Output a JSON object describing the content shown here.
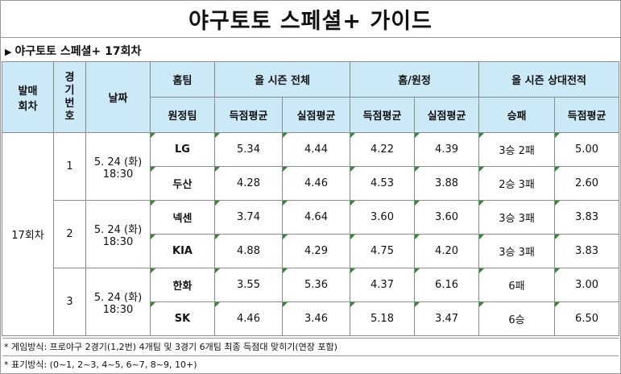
{
  "title": "야구토토 스페셜+ 가이드",
  "subtitle": "야구토토 스페셜+ 17회차",
  "header": {
    "round": "발매\n회차",
    "game_no": "경\n기\n번\n호",
    "date": "날짜",
    "home_team": "홈팀",
    "away_team": "원정팀",
    "season_total": "올 시즌 전체",
    "home_away": "홈/원정",
    "head_to_head": "올 시즌 상대전적",
    "avg_scored": "득점평균",
    "avg_allowed": "실점평균",
    "win_loss": "승패"
  },
  "round_label": "17회차",
  "games": [
    {
      "no": "1",
      "date": "5. 24 (화)",
      "time": "18:30",
      "teams": [
        {
          "name": "LG",
          "season_scored": "5.34",
          "season_allowed": "4.44",
          "ha_scored": "4.22",
          "ha_allowed": "4.39",
          "record": "3승 2패",
          "h2h_scored": "5.00"
        },
        {
          "name": "두산",
          "season_scored": "4.28",
          "season_allowed": "4.46",
          "ha_scored": "4.53",
          "ha_allowed": "3.88",
          "record": "2승 3패",
          "h2h_scored": "2.60"
        }
      ]
    },
    {
      "no": "2",
      "date": "5. 24 (화)",
      "time": "18:30",
      "teams": [
        {
          "name": "넥센",
          "season_scored": "3.74",
          "season_allowed": "4.64",
          "ha_scored": "3.60",
          "ha_allowed": "3.60",
          "record": "3승 3패",
          "h2h_scored": "3.83"
        },
        {
          "name": "KIA",
          "season_scored": "4.88",
          "season_allowed": "4.29",
          "ha_scored": "4.75",
          "ha_allowed": "4.20",
          "record": "3승 3패",
          "h2h_scored": "3.83"
        }
      ]
    },
    {
      "no": "3",
      "date": "5. 24 (화)",
      "time": "18:30",
      "teams": [
        {
          "name": "한화",
          "season_scored": "3.55",
          "season_allowed": "5.36",
          "ha_scored": "4.37",
          "ha_allowed": "6.16",
          "record": "6패",
          "h2h_scored": "3.00"
        },
        {
          "name": "SK",
          "season_scored": "4.46",
          "season_allowed": "3.46",
          "ha_scored": "5.18",
          "ha_allowed": "3.47",
          "record": "6승",
          "h2h_scored": "6.50"
        }
      ]
    }
  ],
  "notes": [
    "* 게임방식: 프로야구 2경기(1,2번) 4개팀 및 3경기 6개팀 최종 득점대 맞히기(연장 포함)",
    "* 표기방식: (0~1, 2~3, 4~5, 6~7, 8~9, 10+)"
  ],
  "colors": {
    "header_bg": "#cce9f7",
    "marker": "#2e8b2e",
    "border": "#8c8c8c"
  }
}
